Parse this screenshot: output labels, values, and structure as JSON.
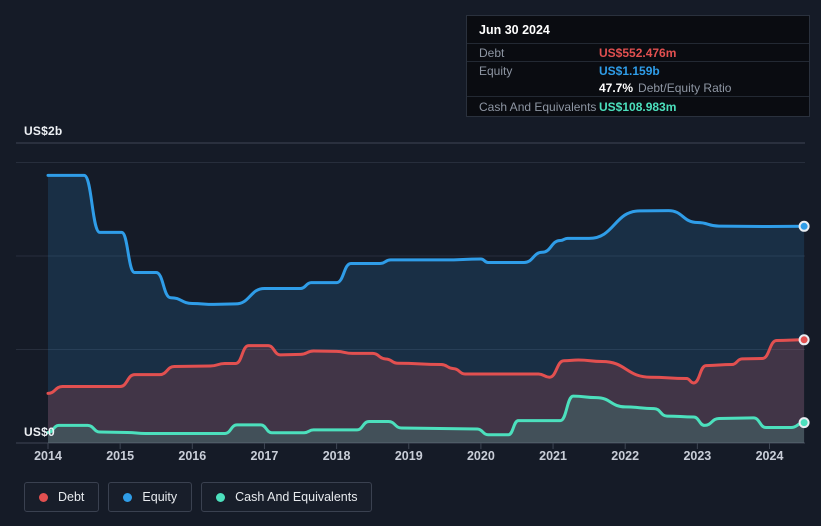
{
  "colors": {
    "debt": "#e25050",
    "equity": "#2f9de8",
    "cash": "#4ce0bd",
    "background": "#151b27",
    "tooltip_bg": "#0a0c11",
    "grid_faint": "#272e3c",
    "grid_axis": "#3e4654",
    "muted_text": "#8e96a3",
    "year_text": "#c9ced8"
  },
  "tooltip": {
    "date": "Jun 30 2024",
    "debt_label": "Debt",
    "debt_value": "US$552.476m",
    "equity_label": "Equity",
    "equity_value": "US$1.159b",
    "ratio_value": "47.7%",
    "ratio_label": "Debt/Equity Ratio",
    "cash_label": "Cash And Equivalents",
    "cash_value": "US$108.983m"
  },
  "axis": {
    "y_top": "US$2b",
    "y_bottom": "US$0",
    "years": [
      "2014",
      "2015",
      "2016",
      "2017",
      "2018",
      "2019",
      "2020",
      "2021",
      "2022",
      "2023",
      "2024"
    ]
  },
  "legend": {
    "items": [
      {
        "label": "Debt",
        "color_key": "debt"
      },
      {
        "label": "Equity",
        "color_key": "equity"
      },
      {
        "label": "Cash And Equivalents",
        "color_key": "cash"
      }
    ]
  },
  "chart_data": {
    "type": "area",
    "unit": "US$ billions",
    "x_range": [
      2014.0,
      2024.5
    ],
    "ylim": [
      0,
      2
    ],
    "y_axis_labels": {
      "top": "US$2b",
      "bottom": "US$0"
    },
    "y_gridline_values": [
      0.5,
      1.0,
      1.5
    ],
    "grid": true,
    "legend_position": "bottom-left",
    "latest_point_date": "Jun 30 2024",
    "latest": {
      "debt_m": 552.476,
      "equity_b": 1.159,
      "debt_equity_ratio_pct": 47.7,
      "cash_m": 108.983
    },
    "series": [
      {
        "name": "Equity",
        "color_key": "equity",
        "points": [
          [
            2014.0,
            1.431
          ],
          [
            2014.5,
            1.431
          ],
          [
            2014.72,
            1.126
          ],
          [
            2015.02,
            1.126
          ],
          [
            2015.2,
            0.912
          ],
          [
            2015.5,
            0.912
          ],
          [
            2015.7,
            0.777
          ],
          [
            2016.0,
            0.746
          ],
          [
            2016.3,
            0.741
          ],
          [
            2016.6,
            0.744
          ],
          [
            2017.0,
            0.826
          ],
          [
            2017.5,
            0.826
          ],
          [
            2017.65,
            0.858
          ],
          [
            2018.0,
            0.858
          ],
          [
            2018.2,
            0.96
          ],
          [
            2018.6,
            0.96
          ],
          [
            2018.75,
            0.979
          ],
          [
            2019.5,
            0.979
          ],
          [
            2020.0,
            0.984
          ],
          [
            2020.1,
            0.965
          ],
          [
            2020.6,
            0.965
          ],
          [
            2020.85,
            1.02
          ],
          [
            2021.1,
            1.083
          ],
          [
            2021.2,
            1.094
          ],
          [
            2021.5,
            1.094
          ],
          [
            2022.2,
            1.241
          ],
          [
            2022.6,
            1.243
          ],
          [
            2023.0,
            1.179
          ],
          [
            2023.3,
            1.16
          ],
          [
            2024.0,
            1.158
          ],
          [
            2024.48,
            1.159
          ]
        ]
      },
      {
        "name": "Debt",
        "color_key": "debt",
        "points": [
          [
            2014.0,
            0.265
          ],
          [
            2014.2,
            0.302
          ],
          [
            2015.0,
            0.302
          ],
          [
            2015.2,
            0.366
          ],
          [
            2015.55,
            0.366
          ],
          [
            2015.75,
            0.409
          ],
          [
            2016.25,
            0.412
          ],
          [
            2016.45,
            0.425
          ],
          [
            2016.6,
            0.425
          ],
          [
            2016.78,
            0.521
          ],
          [
            2017.05,
            0.521
          ],
          [
            2017.22,
            0.471
          ],
          [
            2017.5,
            0.474
          ],
          [
            2017.68,
            0.492
          ],
          [
            2018.0,
            0.49
          ],
          [
            2018.22,
            0.479
          ],
          [
            2018.5,
            0.479
          ],
          [
            2018.68,
            0.449
          ],
          [
            2018.85,
            0.426
          ],
          [
            2019.45,
            0.42
          ],
          [
            2019.62,
            0.398
          ],
          [
            2019.78,
            0.369
          ],
          [
            2020.8,
            0.369
          ],
          [
            2020.95,
            0.352
          ],
          [
            2021.15,
            0.44
          ],
          [
            2021.35,
            0.444
          ],
          [
            2021.68,
            0.436
          ],
          [
            2022.35,
            0.352
          ],
          [
            2022.85,
            0.345
          ],
          [
            2022.95,
            0.321
          ],
          [
            2023.12,
            0.414
          ],
          [
            2023.48,
            0.42
          ],
          [
            2023.62,
            0.45
          ],
          [
            2023.9,
            0.452
          ],
          [
            2024.1,
            0.548
          ],
          [
            2024.48,
            0.552
          ]
        ]
      },
      {
        "name": "Cash And Equivalents",
        "color_key": "cash",
        "points": [
          [
            2014.0,
            0.056
          ],
          [
            2014.15,
            0.094
          ],
          [
            2014.55,
            0.094
          ],
          [
            2014.72,
            0.059
          ],
          [
            2015.1,
            0.056
          ],
          [
            2015.35,
            0.051
          ],
          [
            2016.45,
            0.051
          ],
          [
            2016.62,
            0.097
          ],
          [
            2016.95,
            0.097
          ],
          [
            2017.1,
            0.055
          ],
          [
            2017.55,
            0.055
          ],
          [
            2017.68,
            0.07
          ],
          [
            2018.28,
            0.07
          ],
          [
            2018.45,
            0.115
          ],
          [
            2018.72,
            0.115
          ],
          [
            2018.9,
            0.08
          ],
          [
            2019.3,
            0.078
          ],
          [
            2019.95,
            0.075
          ],
          [
            2020.1,
            0.044
          ],
          [
            2020.38,
            0.044
          ],
          [
            2020.52,
            0.12
          ],
          [
            2021.1,
            0.12
          ],
          [
            2021.28,
            0.251
          ],
          [
            2021.6,
            0.243
          ],
          [
            2022.0,
            0.193
          ],
          [
            2022.4,
            0.184
          ],
          [
            2022.58,
            0.144
          ],
          [
            2022.95,
            0.139
          ],
          [
            2023.1,
            0.094
          ],
          [
            2023.3,
            0.131
          ],
          [
            2023.78,
            0.134
          ],
          [
            2023.95,
            0.083
          ],
          [
            2024.3,
            0.083
          ],
          [
            2024.48,
            0.109
          ]
        ]
      }
    ]
  }
}
